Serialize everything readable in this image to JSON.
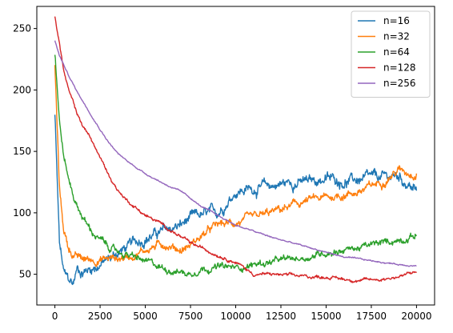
{
  "chart_data": {
    "type": "line",
    "title": "",
    "xlabel": "",
    "ylabel": "",
    "xlim": [
      -1000,
      21000
    ],
    "ylim": [
      25,
      268
    ],
    "grid": false,
    "legend_position": "top-right",
    "x_ticks": [
      0,
      2500,
      5000,
      7500,
      10000,
      12500,
      15000,
      17500,
      20000
    ],
    "x_tick_labels": [
      "0",
      "2500",
      "5000",
      "7500",
      "10000",
      "12500",
      "15000",
      "17500",
      "20000"
    ],
    "y_ticks": [
      50,
      100,
      150,
      200,
      250
    ],
    "y_tick_labels": [
      "50",
      "100",
      "150",
      "200",
      "250"
    ],
    "x": [
      0,
      250,
      500,
      750,
      1000,
      1250,
      1500,
      2000,
      2500,
      3000,
      3500,
      4000,
      5000,
      6000,
      7000,
      7500,
      8000,
      9000,
      10000,
      11000,
      12000,
      13000,
      14000,
      15000,
      16000,
      17000,
      18000,
      19000,
      20000
    ],
    "series": [
      {
        "name": "n=16",
        "color": "#1f77b4",
        "noise": 4,
        "values": [
          180,
          75,
          50,
          45,
          42,
          55,
          52,
          55,
          58,
          62,
          68,
          72,
          80,
          85,
          90,
          95,
          97,
          100,
          118,
          120,
          122,
          125,
          125,
          128,
          126,
          127,
          128,
          130,
          118
        ]
      },
      {
        "name": "n=32",
        "color": "#ff7f0e",
        "noise": 3,
        "values": [
          220,
          120,
          85,
          72,
          66,
          64,
          62,
          62,
          62,
          63,
          63,
          64,
          70,
          75,
          70,
          74,
          80,
          90,
          92,
          95,
          100,
          105,
          110,
          112,
          115,
          118,
          125,
          135,
          132
        ]
      },
      {
        "name": "n=64",
        "color": "#2ca02c",
        "noise": 2.5,
        "values": [
          230,
          175,
          145,
          128,
          115,
          105,
          98,
          85,
          78,
          72,
          68,
          66,
          60,
          55,
          52,
          50,
          55,
          56,
          55,
          58,
          60,
          62,
          64,
          68,
          70,
          72,
          75,
          78,
          82
        ]
      },
      {
        "name": "n=128",
        "color": "#d62728",
        "noise": 1.2,
        "values": [
          260,
          238,
          215,
          200,
          190,
          180,
          172,
          160,
          145,
          130,
          118,
          110,
          98,
          90,
          80,
          75,
          72,
          66,
          60,
          50,
          50,
          49,
          48,
          48,
          46,
          45,
          46,
          48,
          52
        ]
      },
      {
        "name": "n=256",
        "color": "#9467bd",
        "noise": 0.5,
        "values": [
          240,
          228,
          220,
          212,
          205,
          198,
          192,
          180,
          168,
          157,
          148,
          142,
          132,
          124,
          117,
          112,
          106,
          98,
          90,
          85,
          80,
          76,
          72,
          68,
          64,
          62,
          60,
          58,
          57
        ]
      }
    ]
  }
}
